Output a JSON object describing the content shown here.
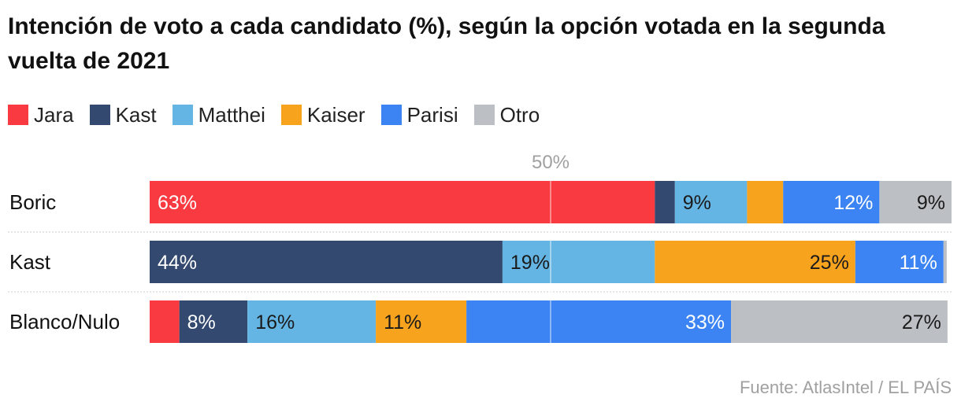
{
  "title": "Intención de voto a cada candidato (%), según la opción votada en la segunda vuelta de 2021",
  "source": "Fuente: AtlasIntel / EL PAÍS",
  "colors": {
    "Jara": "#f93a40",
    "Kast": "#33496f",
    "Matthei": "#64b5e3",
    "Kaiser": "#f8a31e",
    "Parisi": "#3c84f4",
    "Otro": "#bcc0c4"
  },
  "legend": [
    {
      "label": "Jara",
      "icon": "red-square-swatch"
    },
    {
      "label": "Kast",
      "icon": "navy-square-swatch"
    },
    {
      "label": "Matthei",
      "icon": "light-blue-square-swatch"
    },
    {
      "label": "Kaiser",
      "icon": "orange-square-swatch"
    },
    {
      "label": "Parisi",
      "icon": "blue-square-swatch"
    },
    {
      "label": "Otro",
      "icon": "gray-square-swatch"
    }
  ],
  "chart_data": {
    "type": "bar",
    "orientation": "horizontal",
    "stacked": true,
    "categories": [
      "Boric",
      "Kast",
      "Blanco/Nulo"
    ],
    "series": [
      {
        "name": "Jara",
        "values": [
          63,
          0,
          3.7
        ]
      },
      {
        "name": "Kast",
        "values": [
          2.5,
          44,
          8.5
        ]
      },
      {
        "name": "Matthei",
        "values": [
          9,
          19,
          16
        ]
      },
      {
        "name": "Kaiser",
        "values": [
          4.5,
          25,
          11.3
        ]
      },
      {
        "name": "Parisi",
        "values": [
          12,
          11,
          33
        ]
      },
      {
        "name": "Otro",
        "values": [
          9,
          0.4,
          27
        ]
      }
    ],
    "data_labels": [
      [
        "63%",
        "",
        "9%",
        "",
        "12%",
        "9%"
      ],
      [
        "",
        "44%",
        "19%",
        "25%",
        "11%",
        ""
      ],
      [
        "",
        "8%",
        "16%",
        "11%",
        "33%",
        "27%"
      ]
    ],
    "reference_line": {
      "value": 50,
      "label": "50%"
    },
    "xlim": [
      0,
      100
    ],
    "xlabel": "",
    "ylabel": ""
  }
}
